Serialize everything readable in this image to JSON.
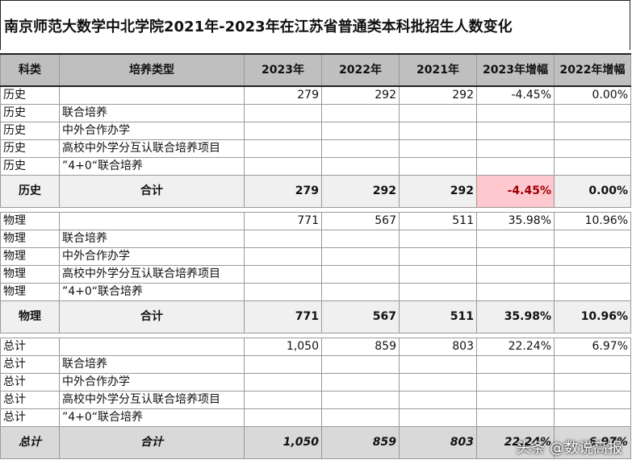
{
  "title": "南京师范大数学中北学院2021年-2023年在江苏省普通类本科批招生人数变化",
  "headers": [
    "科类",
    "培养类型",
    "2023年",
    "2022年",
    "2021年",
    "2023年增幅",
    "2022年增幅"
  ],
  "groups": [
    {
      "rows": [
        [
          "历史",
          "",
          "279",
          "292",
          "292",
          "-4.45%",
          "0.00%"
        ],
        [
          "历史",
          "联合培养",
          "",
          "",
          "",
          "",
          ""
        ],
        [
          "历史",
          "中外合作办学",
          "",
          "",
          "",
          "",
          ""
        ],
        [
          "历史",
          "高校中外学分互认联合培养项目",
          "",
          "",
          "",
          "",
          ""
        ],
        [
          "历史",
          "”4+0“联合培养",
          "",
          "",
          "",
          "",
          ""
        ]
      ],
      "summary": [
        "历史",
        "合计",
        "279",
        "292",
        "292",
        "-4.45%",
        "0.00%"
      ]
    },
    {
      "rows": [
        [
          "物理",
          "",
          "771",
          "567",
          "511",
          "35.98%",
          "10.96%"
        ],
        [
          "物理",
          "联合培养",
          "",
          "",
          "",
          "",
          ""
        ],
        [
          "物理",
          "中外合作办学",
          "",
          "",
          "",
          "",
          ""
        ],
        [
          "物理",
          "高校中外学分互认联合培养项目",
          "",
          "",
          "",
          "",
          ""
        ],
        [
          "物理",
          "”4+0“联合培养",
          "",
          "",
          "",
          "",
          ""
        ]
      ],
      "summary": [
        "物理",
        "合计",
        "771",
        "567",
        "511",
        "35.98%",
        "10.96%"
      ]
    },
    {
      "rows": [
        [
          "总计",
          "",
          "1,050",
          "859",
          "803",
          "22.24%",
          "6.97%"
        ],
        [
          "总计",
          "联合培养",
          "",
          "",
          "",
          "",
          ""
        ],
        [
          "总计",
          "中外合作办学",
          "",
          "",
          "",
          "",
          ""
        ],
        [
          "总计",
          "高校中外学分互认联合培养项目",
          "",
          "",
          "",
          "",
          ""
        ],
        [
          "总计",
          "”4+0“联合培养",
          "",
          "",
          "",
          "",
          ""
        ]
      ],
      "summary": [
        "总计",
        "合计",
        "1,050",
        "859",
        "803",
        "22.24%",
        "6.97%"
      ]
    }
  ],
  "watermark": "头条 @数说高报",
  "colors": {
    "header_bg": "#bfbfbf",
    "negative_highlight_bg": "#ffc7ce",
    "negative_highlight_text": "#9c0006"
  }
}
